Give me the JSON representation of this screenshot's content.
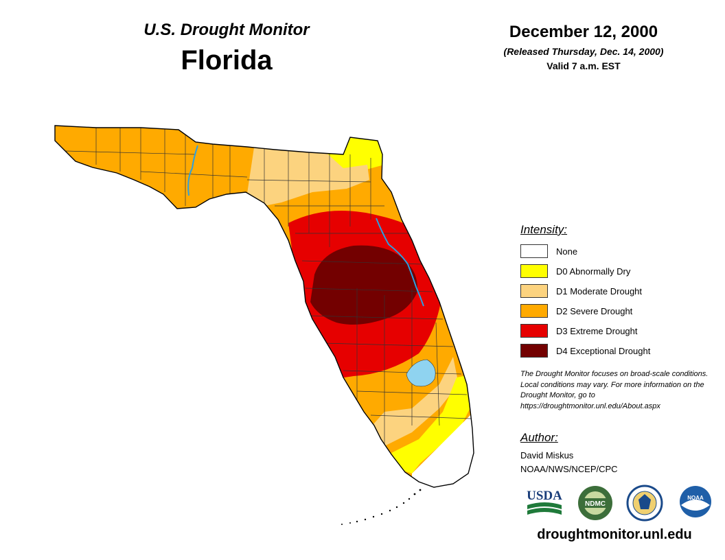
{
  "header": {
    "title": "U.S. Drought Monitor",
    "state": "Florida",
    "date": "December 12, 2000",
    "released": "(Released Thursday, Dec. 14, 2000)",
    "valid": "Valid 7 a.m. EST"
  },
  "legend": {
    "title": "Intensity:",
    "items": [
      {
        "label": "None",
        "color": "#ffffff"
      },
      {
        "label": "D0 Abnormally Dry",
        "color": "#ffff00"
      },
      {
        "label": "D1 Moderate Drought",
        "color": "#fcd37f"
      },
      {
        "label": "D2 Severe Drought",
        "color": "#ffaa00"
      },
      {
        "label": "D3 Extreme Drought",
        "color": "#e60000"
      },
      {
        "label": "D4 Exceptional Drought",
        "color": "#730000"
      }
    ]
  },
  "note": "The Drought Monitor focuses on broad-scale conditions. Local conditions may vary. For more information on the Drought Monitor, go to https://droughtmonitor.unl.edu/About.aspx",
  "author": {
    "heading": "Author:",
    "name": "David Miskus",
    "org": "NOAA/NWS/NCEP/CPC"
  },
  "logos": {
    "usda": "USDA",
    "ndmc": "NDMC",
    "noaa": "NOAA"
  },
  "website": "droughtmonitor.unl.edu",
  "colors": {
    "water": "#8fd3f0",
    "river": "#2aa0e0",
    "county_line": "#333333"
  }
}
